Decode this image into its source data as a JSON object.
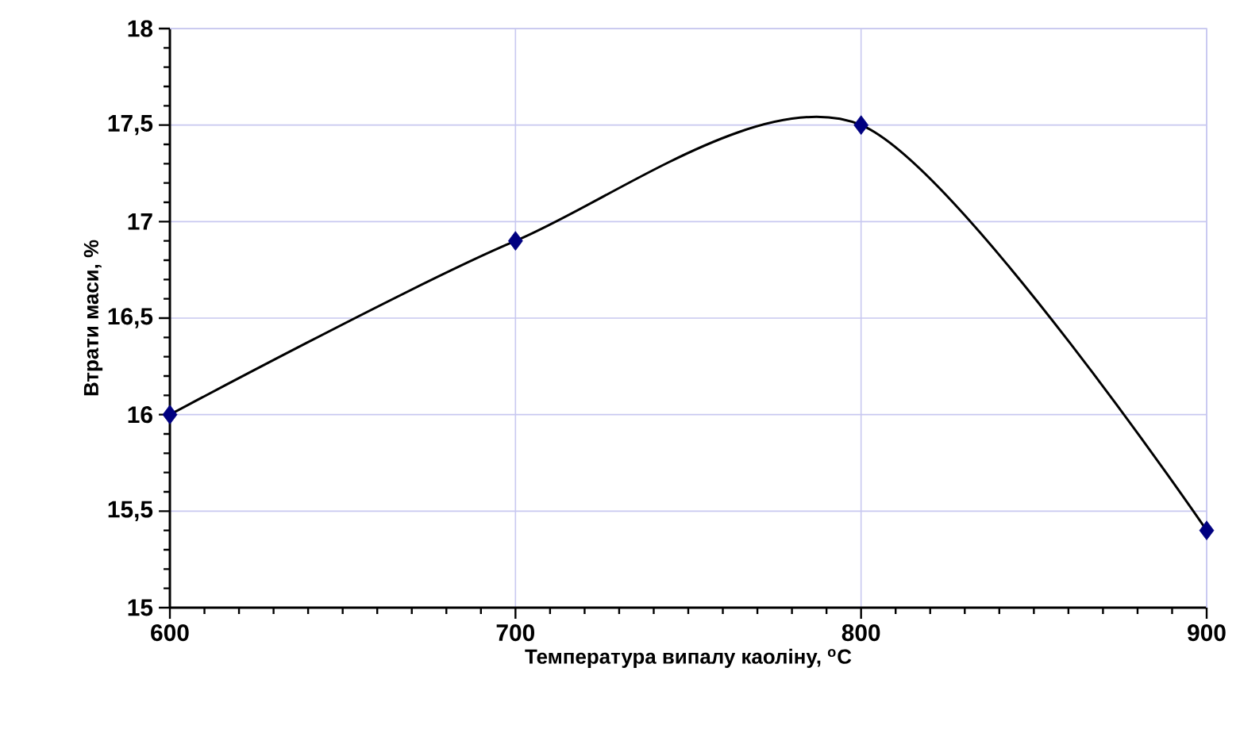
{
  "chart_data": {
    "type": "line",
    "xlabel": "Температура випалу каоліну, $^{o}$C",
    "ylabel": "Втрати маси, %",
    "x": [
      600,
      700,
      800,
      900
    ],
    "series": [
      {
        "color": "#000000",
        "colors": [
          "#000080",
          "#000080",
          "#000080",
          "#000080"
        ],
        "values": [
          16,
          16.9,
          17.5,
          15.4
        ]
      }
    ],
    "xlim": [
      600,
      900
    ],
    "xticks": [
      600,
      700,
      800,
      900
    ],
    "ylim": [
      15,
      18
    ],
    "yticks": [
      15,
      {
        "value": 15.5,
        "label": "15,5"
      },
      16,
      {
        "value": 16.5,
        "label": "16,5"
      },
      17,
      {
        "value": 17.5,
        "label": "17,5"
      },
      18
    ],
    "grid": true,
    "marker": "diamond",
    "line_style": "solid"
  }
}
